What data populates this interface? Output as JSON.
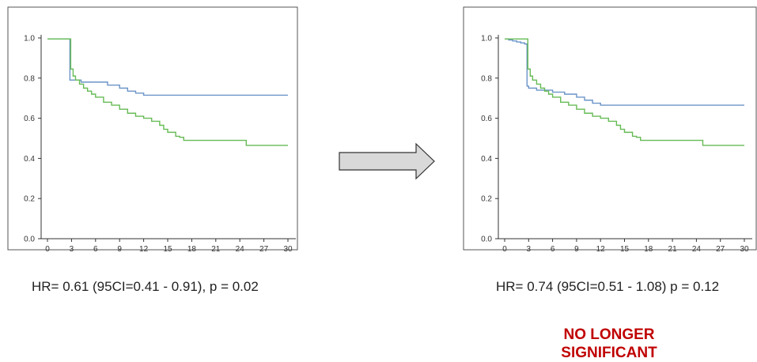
{
  "colors": {
    "series_a": "#6b94c8",
    "series_b": "#66bb55",
    "axis": "#333333",
    "frame": "#555555",
    "arrow_fill": "#d9d9d9",
    "arrow_stroke": "#333333",
    "verdict": "#c00000"
  },
  "left": {
    "caption": "HR= 0.61 (95CI=0.41 - 0.91),  p = 0.02"
  },
  "right": {
    "caption": "HR= 0.74 (95CI=0.51 - 1.08)  p = 0.12"
  },
  "verdict": {
    "line1": "NO LONGER",
    "line2": "SIGNIFICANT"
  },
  "arrow_icon": "right-arrow-icon",
  "chart_data": [
    {
      "type": "line",
      "xticks": [
        0,
        3,
        6,
        9,
        12,
        15,
        18,
        21,
        24,
        27,
        30
      ],
      "yticks": [
        0.0,
        0.2,
        0.4,
        0.6,
        0.8,
        1.0
      ],
      "ytick_labels": [
        "0.0",
        "0.2",
        "0.4",
        "0.6",
        "0.8",
        "1.0"
      ],
      "xlim": [
        0,
        30
      ],
      "ylim": [
        0,
        1
      ],
      "grid": false,
      "series": [
        {
          "color": "#6b94c8",
          "x": [
            0,
            2.8,
            2.8,
            4.2,
            7.5,
            9,
            10,
            11,
            12,
            30
          ],
          "y": [
            0.995,
            0.995,
            0.79,
            0.78,
            0.765,
            0.75,
            0.735,
            0.725,
            0.715,
            0.715
          ]
        },
        {
          "color": "#66bb55",
          "x": [
            0,
            2.9,
            2.9,
            3.2,
            3.5,
            4,
            4.5,
            5,
            5.5,
            6,
            7,
            8,
            9,
            10,
            11,
            12,
            13,
            14,
            14.5,
            15,
            16,
            16.5,
            17,
            24.8,
            24.8,
            30
          ],
          "y": [
            0.995,
            0.995,
            0.845,
            0.81,
            0.79,
            0.77,
            0.75,
            0.735,
            0.72,
            0.705,
            0.68,
            0.665,
            0.645,
            0.625,
            0.61,
            0.6,
            0.585,
            0.565,
            0.545,
            0.53,
            0.51,
            0.505,
            0.49,
            0.49,
            0.465,
            0.465
          ]
        }
      ]
    },
    {
      "type": "line",
      "xticks": [
        0,
        3,
        6,
        9,
        12,
        15,
        18,
        21,
        24,
        27,
        30
      ],
      "yticks": [
        0.0,
        0.2,
        0.4,
        0.6,
        0.8,
        1.0
      ],
      "ytick_labels": [
        "0.0",
        "0.2",
        "0.4",
        "0.6",
        "0.8",
        "1.0"
      ],
      "xlim": [
        0,
        30
      ],
      "ylim": [
        0,
        1
      ],
      "grid": false,
      "series": [
        {
          "color": "#6b94c8",
          "x": [
            0,
            0.5,
            1,
            1.5,
            2,
            2.5,
            2.8,
            2.8,
            3,
            4,
            6,
            7.5,
            9,
            10,
            11,
            12,
            30
          ],
          "y": [
            0.995,
            0.99,
            0.985,
            0.98,
            0.975,
            0.97,
            0.96,
            0.76,
            0.75,
            0.74,
            0.73,
            0.72,
            0.705,
            0.69,
            0.675,
            0.665,
            0.665
          ]
        },
        {
          "color": "#66bb55",
          "x": [
            0,
            2.9,
            2.9,
            3.2,
            3.5,
            4,
            4.5,
            5,
            5.5,
            6,
            7,
            8,
            9,
            10,
            11,
            12,
            13,
            14,
            14.5,
            15,
            16,
            16.5,
            17,
            24.8,
            24.8,
            30
          ],
          "y": [
            0.995,
            0.995,
            0.845,
            0.81,
            0.79,
            0.77,
            0.75,
            0.735,
            0.72,
            0.705,
            0.68,
            0.665,
            0.645,
            0.625,
            0.61,
            0.6,
            0.585,
            0.565,
            0.545,
            0.53,
            0.51,
            0.505,
            0.49,
            0.49,
            0.465,
            0.465
          ]
        }
      ]
    }
  ]
}
